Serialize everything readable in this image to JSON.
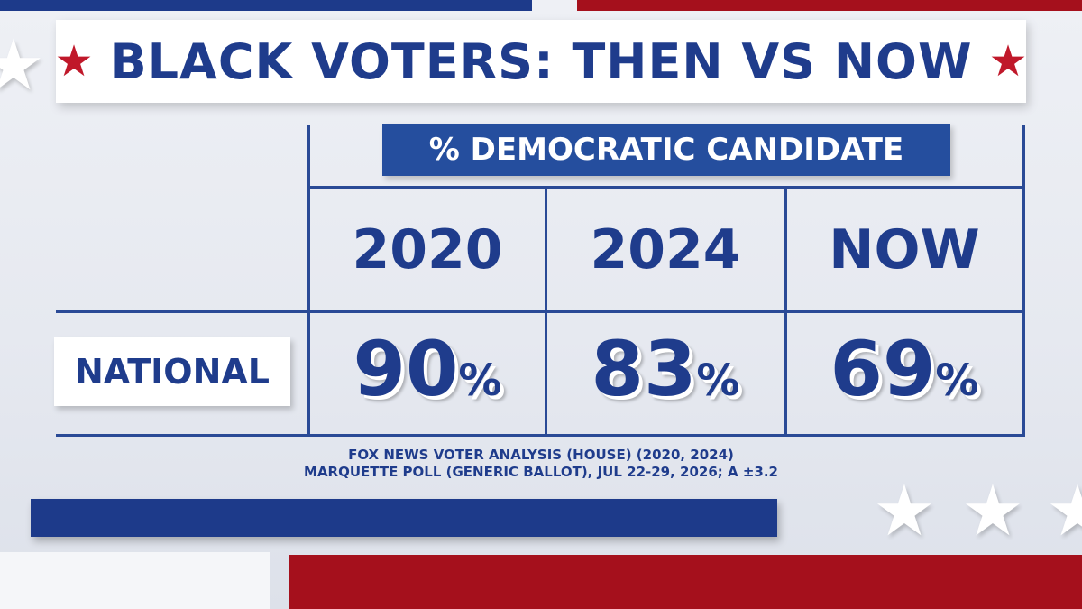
{
  "title": "BLACK VOTERS: THEN VS NOW",
  "title_star_left": "★",
  "title_star_right": "★",
  "header": "% DEMOCRATIC CANDIDATE",
  "columns": [
    "2020",
    "2024",
    "NOW"
  ],
  "row_label": "NATIONAL",
  "percent_sign": "%",
  "source_lines": [
    "FOX NEWS VOTER ANALYSIS (HOUSE) (2020, 2024)",
    "MARQUETTE POLL (GENERIC BALLOT), JUL 22-29, 2026; A ±3.2"
  ],
  "colors": {
    "navy": "#1f3c8c",
    "header_blue": "#254e9e",
    "red": "#c0182a",
    "grid": "#2a4a96"
  },
  "chart_data": {
    "type": "table",
    "title": "BLACK VOTERS: THEN VS NOW",
    "column_group": "% DEMOCRATIC CANDIDATE",
    "categories": [
      "2020",
      "2024",
      "NOW"
    ],
    "series": [
      {
        "name": "NATIONAL",
        "values": [
          90,
          83,
          69
        ]
      }
    ]
  }
}
